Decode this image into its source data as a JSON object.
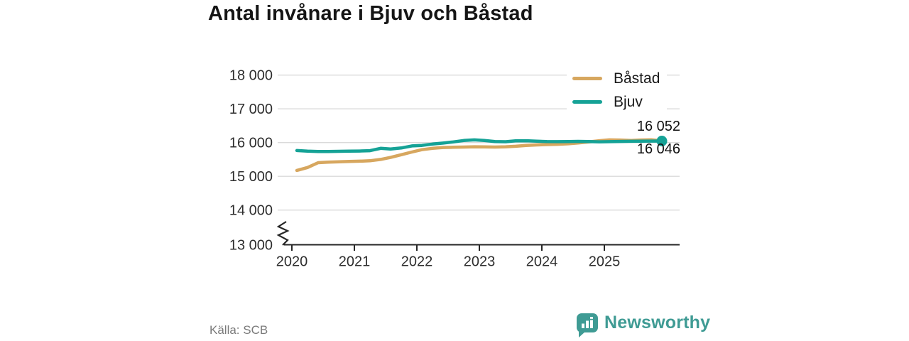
{
  "title": "Antal invånare i Bjuv och Båstad",
  "source": "Källa: SCB",
  "branding": {
    "name": "Newsworthy",
    "color": "#3f9b94",
    "icon": "bar-chart-speech-bubble"
  },
  "chart_data": {
    "type": "line",
    "title": "Antal invånare i Bjuv och Båstad",
    "xlabel": "",
    "ylabel": "",
    "grid": "horizontal",
    "legend_position": "top-right",
    "axis_break_at_bottom": true,
    "ylim": [
      13000,
      18400
    ],
    "xlim": [
      2019.85,
      2026.2
    ],
    "x": [
      2020.08,
      2020.25,
      2020.42,
      2020.58,
      2020.75,
      2020.92,
      2021.08,
      2021.25,
      2021.42,
      2021.58,
      2021.75,
      2021.92,
      2022.08,
      2022.25,
      2022.42,
      2022.58,
      2022.75,
      2022.92,
      2023.08,
      2023.25,
      2023.42,
      2023.58,
      2023.75,
      2023.92,
      2024.08,
      2024.25,
      2024.42,
      2024.58,
      2024.75,
      2024.92,
      2025.08,
      2025.25,
      2025.42,
      2025.58,
      2025.75,
      2025.92
    ],
    "series": [
      {
        "name": "Båstad",
        "color": "#d7a75f",
        "end_label": "16 052",
        "final_value": 16052,
        "values": [
          15175,
          15260,
          15405,
          15420,
          15430,
          15440,
          15448,
          15460,
          15500,
          15560,
          15640,
          15720,
          15790,
          15830,
          15855,
          15862,
          15868,
          15875,
          15872,
          15868,
          15875,
          15890,
          15915,
          15930,
          15940,
          15950,
          15965,
          15990,
          16020,
          16055,
          16080,
          16075,
          16060,
          16075,
          16085,
          16052
        ]
      },
      {
        "name": "Bjuv",
        "color": "#15a296",
        "end_label": "16 046",
        "final_value": 16046,
        "end_dot": true,
        "values": [
          15765,
          15745,
          15735,
          15735,
          15740,
          15745,
          15750,
          15760,
          15830,
          15810,
          15840,
          15900,
          15915,
          15955,
          15985,
          16020,
          16060,
          16080,
          16060,
          16030,
          16025,
          16050,
          16055,
          16040,
          16030,
          16028,
          16032,
          16036,
          16030,
          16024,
          16028,
          16034,
          16038,
          16040,
          16044,
          16046
        ]
      }
    ],
    "xticks": {
      "values": [
        2020,
        2021,
        2022,
        2023,
        2024,
        2025
      ],
      "labels": [
        "2020",
        "2021",
        "2022",
        "2023",
        "2024",
        "2025"
      ]
    },
    "yticks": {
      "values": [
        18000,
        17000,
        16000,
        15000,
        14000,
        13000
      ],
      "labels": [
        "18 000",
        "17 000",
        "16 000",
        "15 000",
        "14 000",
        "13 000"
      ]
    }
  }
}
